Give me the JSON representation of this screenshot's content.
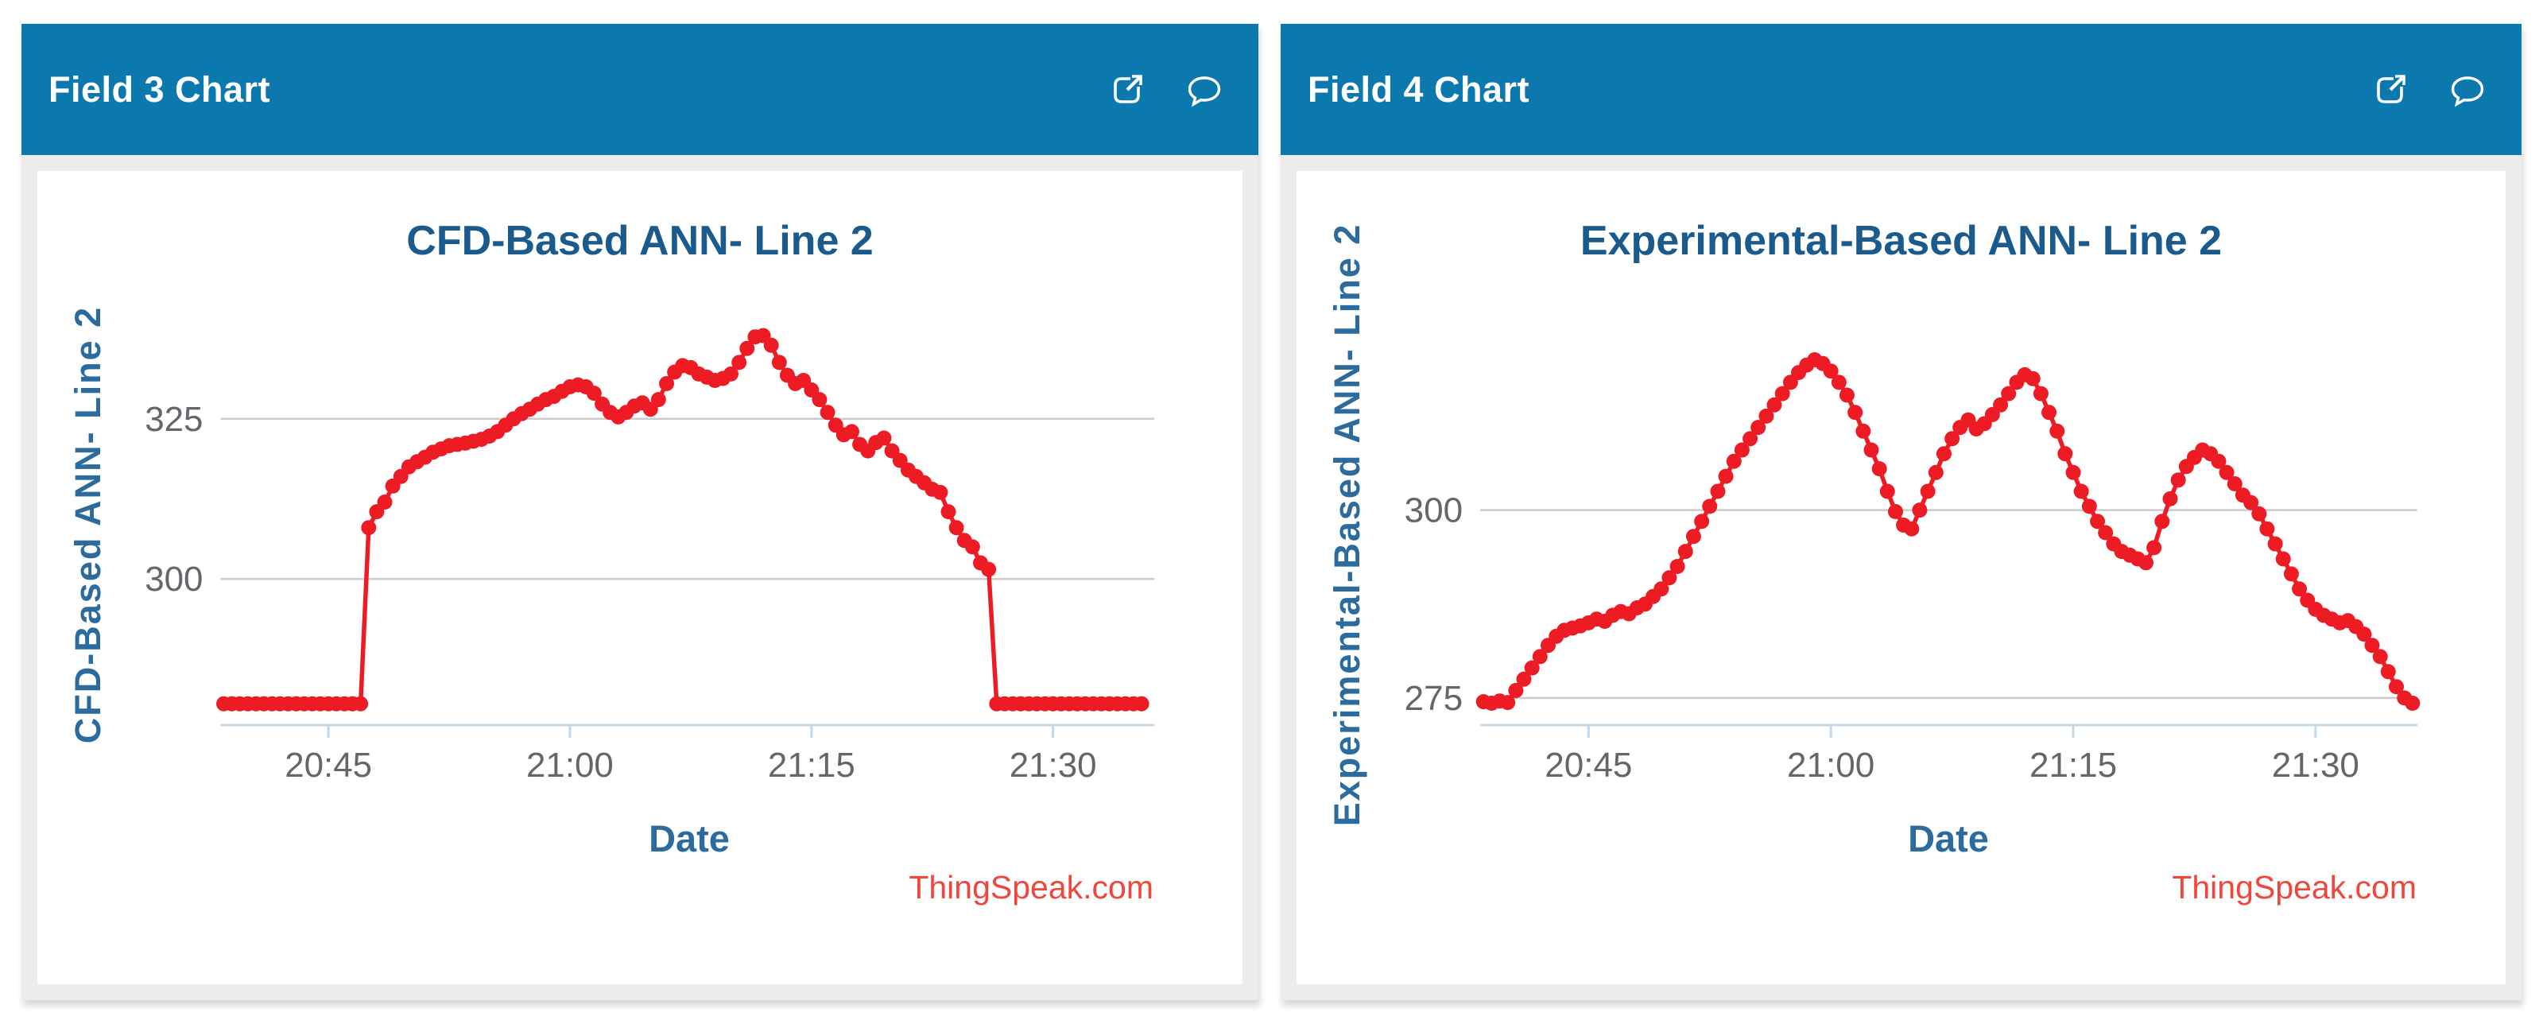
{
  "colors": {
    "page_bg": "#ffffff",
    "header_bg": "#0b79ad",
    "header_text": "#ffffff",
    "card_body_bg": "#ececec",
    "chart_bg": "#ffffff",
    "title_text": "#1a5a8c",
    "axis_title_text": "#2b6b9e",
    "tick_text": "#63676b",
    "gridline": "#cccccc",
    "axis_line": "#c5d8e8",
    "series": "#ed1c24",
    "watermark_text": "#f0463c",
    "card_shadow": "rgba(0,0,0,0.16)"
  },
  "cards": [
    {
      "header": {
        "title": "Field 3 Chart",
        "icons": [
          "external-link-icon",
          "speech-bubble-icon"
        ]
      }
    },
    {
      "header": {
        "title": "Field 4 Chart",
        "icons": [
          "external-link-icon",
          "speech-bubble-icon"
        ]
      }
    }
  ],
  "chart_data": [
    {
      "type": "line",
      "title": "CFD-Based ANN- Line 2",
      "xlabel": "Date",
      "ylabel": "CFD-Based ANN- Line 2",
      "watermark": "ThingSpeak.com",
      "legend": "none",
      "grid": "horizontal-only",
      "marker": "filled-circle",
      "x_unit": "minutes-after-20:00",
      "x_tick_labels": [
        "20:45",
        "21:00",
        "21:15",
        "21:30"
      ],
      "x_tick_minutes": [
        45,
        60,
        75,
        90
      ],
      "x_range_minutes": [
        38.3,
        96.3
      ],
      "y_ticks": [
        325,
        300
      ],
      "y_range": [
        277.3,
        339.5
      ],
      "x_start_minute": 38.5,
      "x_step_minutes": 0.5,
      "values": [
        280.5,
        280.5,
        280.5,
        280.5,
        280.5,
        280.5,
        280.5,
        280.5,
        280.5,
        280.5,
        280.5,
        280.5,
        280.5,
        280.5,
        280.5,
        280.5,
        280.5,
        280.5,
        308,
        310.5,
        312,
        314.5,
        316,
        317.5,
        318.3,
        319,
        319.8,
        320.3,
        320.8,
        321,
        321.2,
        321.5,
        321.8,
        322.3,
        323,
        324,
        325,
        325.8,
        326.5,
        327.3,
        328,
        328.5,
        329.3,
        330,
        330.3,
        330,
        329,
        327.3,
        326,
        325.3,
        326,
        327,
        327.5,
        326.5,
        328,
        330.5,
        332.3,
        333.3,
        333,
        332,
        331.5,
        331,
        331.3,
        332,
        333.8,
        336,
        337.8,
        338,
        336.5,
        333.8,
        331.8,
        330.5,
        331,
        329.5,
        328,
        326,
        324,
        322.5,
        323,
        321,
        320,
        321.3,
        322,
        320,
        318.5,
        317,
        316,
        315,
        314,
        313.5,
        310.5,
        308,
        306,
        305,
        302.5,
        301.5,
        280.5,
        280.5,
        280.5,
        280.5,
        280.5,
        280.5,
        280.5,
        280.5,
        280.5,
        280.5,
        280.5,
        280.5,
        280.5,
        280.5,
        280.5,
        280.5,
        280.5,
        280.5,
        280.5
      ]
    },
    {
      "type": "line",
      "title": "Experimental-Based ANN- Line 2",
      "xlabel": "Date",
      "ylabel": "Experimental-Based ANN- Line 2",
      "watermark": "ThingSpeak.com",
      "legend": "none",
      "grid": "horizontal-only",
      "marker": "filled-circle",
      "x_unit": "minutes-after-20:00",
      "x_tick_labels": [
        "20:45",
        "21:00",
        "21:15",
        "21:30"
      ],
      "x_tick_minutes": [
        45,
        60,
        75,
        90
      ],
      "x_range_minutes": [
        38.3,
        96.3
      ],
      "y_ticks": [
        300,
        275
      ],
      "y_range": [
        271.5,
        324.5
      ],
      "x_start_minute": 38.5,
      "x_step_minutes": 0.5,
      "values": [
        274.5,
        274.3,
        274.6,
        274.4,
        276,
        277.5,
        279,
        280.5,
        282,
        283.2,
        284,
        284.3,
        284.6,
        285,
        285.5,
        285.2,
        286,
        286.5,
        286.2,
        287,
        287.5,
        288.5,
        289.5,
        291,
        292.5,
        294.5,
        296.5,
        298.5,
        300.5,
        302.5,
        304.5,
        306.5,
        308,
        309.5,
        311,
        312.5,
        314,
        315.5,
        317,
        318.3,
        319.3,
        320,
        319.5,
        318.5,
        317,
        315.3,
        313,
        310.5,
        308,
        305.5,
        302.5,
        299.8,
        298,
        297.5,
        300,
        302.5,
        305,
        307.5,
        309.5,
        311,
        312,
        310.8,
        311.5,
        312.7,
        314,
        315.5,
        317,
        318,
        317.5,
        315.5,
        313,
        310.5,
        307.5,
        305,
        302.5,
        300.5,
        298.5,
        297,
        295.5,
        294.5,
        294,
        293.5,
        293,
        295,
        298.5,
        301.5,
        304,
        305.8,
        307,
        308,
        307.5,
        306.5,
        305,
        303.5,
        302,
        301,
        299.5,
        297.5,
        295.5,
        293.5,
        291.5,
        289.5,
        288,
        286.8,
        286,
        285.5,
        285,
        285.3,
        284.5,
        283.5,
        282,
        280.5,
        278.5,
        276.5,
        275,
        274.3
      ]
    }
  ]
}
